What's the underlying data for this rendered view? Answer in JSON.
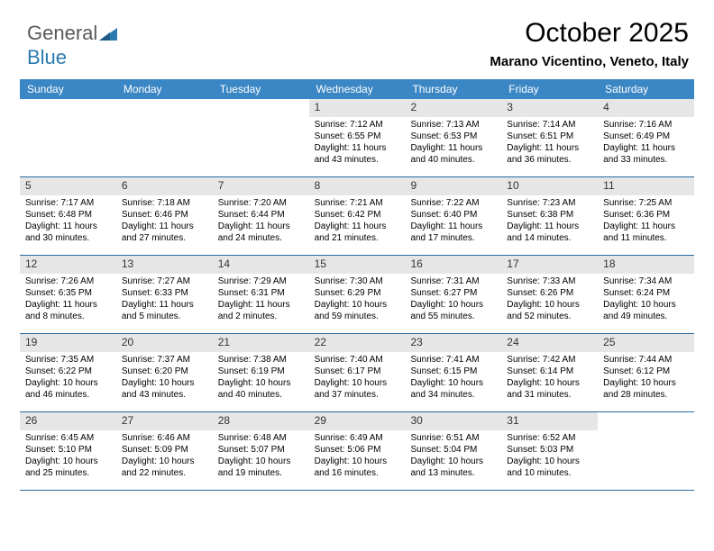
{
  "logo": {
    "text1": "General",
    "text2": "Blue"
  },
  "title": "October 2025",
  "subtitle": "Marano Vicentino, Veneto, Italy",
  "colors": {
    "header_bg": "#3b86c4",
    "header_text": "#ffffff",
    "daynum_bg": "#e6e6e6",
    "border": "#2a6aa0",
    "logo_gray": "#5a5a5a",
    "logo_blue": "#2a7ab0"
  },
  "dayHeaders": [
    "Sunday",
    "Monday",
    "Tuesday",
    "Wednesday",
    "Thursday",
    "Friday",
    "Saturday"
  ],
  "weeks": [
    [
      {
        "n": "",
        "sr": "",
        "ss": "",
        "d1": "",
        "d2": ""
      },
      {
        "n": "",
        "sr": "",
        "ss": "",
        "d1": "",
        "d2": ""
      },
      {
        "n": "",
        "sr": "",
        "ss": "",
        "d1": "",
        "d2": ""
      },
      {
        "n": "1",
        "sr": "Sunrise: 7:12 AM",
        "ss": "Sunset: 6:55 PM",
        "d1": "Daylight: 11 hours",
        "d2": "and 43 minutes."
      },
      {
        "n": "2",
        "sr": "Sunrise: 7:13 AM",
        "ss": "Sunset: 6:53 PM",
        "d1": "Daylight: 11 hours",
        "d2": "and 40 minutes."
      },
      {
        "n": "3",
        "sr": "Sunrise: 7:14 AM",
        "ss": "Sunset: 6:51 PM",
        "d1": "Daylight: 11 hours",
        "d2": "and 36 minutes."
      },
      {
        "n": "4",
        "sr": "Sunrise: 7:16 AM",
        "ss": "Sunset: 6:49 PM",
        "d1": "Daylight: 11 hours",
        "d2": "and 33 minutes."
      }
    ],
    [
      {
        "n": "5",
        "sr": "Sunrise: 7:17 AM",
        "ss": "Sunset: 6:48 PM",
        "d1": "Daylight: 11 hours",
        "d2": "and 30 minutes."
      },
      {
        "n": "6",
        "sr": "Sunrise: 7:18 AM",
        "ss": "Sunset: 6:46 PM",
        "d1": "Daylight: 11 hours",
        "d2": "and 27 minutes."
      },
      {
        "n": "7",
        "sr": "Sunrise: 7:20 AM",
        "ss": "Sunset: 6:44 PM",
        "d1": "Daylight: 11 hours",
        "d2": "and 24 minutes."
      },
      {
        "n": "8",
        "sr": "Sunrise: 7:21 AM",
        "ss": "Sunset: 6:42 PM",
        "d1": "Daylight: 11 hours",
        "d2": "and 21 minutes."
      },
      {
        "n": "9",
        "sr": "Sunrise: 7:22 AM",
        "ss": "Sunset: 6:40 PM",
        "d1": "Daylight: 11 hours",
        "d2": "and 17 minutes."
      },
      {
        "n": "10",
        "sr": "Sunrise: 7:23 AM",
        "ss": "Sunset: 6:38 PM",
        "d1": "Daylight: 11 hours",
        "d2": "and 14 minutes."
      },
      {
        "n": "11",
        "sr": "Sunrise: 7:25 AM",
        "ss": "Sunset: 6:36 PM",
        "d1": "Daylight: 11 hours",
        "d2": "and 11 minutes."
      }
    ],
    [
      {
        "n": "12",
        "sr": "Sunrise: 7:26 AM",
        "ss": "Sunset: 6:35 PM",
        "d1": "Daylight: 11 hours",
        "d2": "and 8 minutes."
      },
      {
        "n": "13",
        "sr": "Sunrise: 7:27 AM",
        "ss": "Sunset: 6:33 PM",
        "d1": "Daylight: 11 hours",
        "d2": "and 5 minutes."
      },
      {
        "n": "14",
        "sr": "Sunrise: 7:29 AM",
        "ss": "Sunset: 6:31 PM",
        "d1": "Daylight: 11 hours",
        "d2": "and 2 minutes."
      },
      {
        "n": "15",
        "sr": "Sunrise: 7:30 AM",
        "ss": "Sunset: 6:29 PM",
        "d1": "Daylight: 10 hours",
        "d2": "and 59 minutes."
      },
      {
        "n": "16",
        "sr": "Sunrise: 7:31 AM",
        "ss": "Sunset: 6:27 PM",
        "d1": "Daylight: 10 hours",
        "d2": "and 55 minutes."
      },
      {
        "n": "17",
        "sr": "Sunrise: 7:33 AM",
        "ss": "Sunset: 6:26 PM",
        "d1": "Daylight: 10 hours",
        "d2": "and 52 minutes."
      },
      {
        "n": "18",
        "sr": "Sunrise: 7:34 AM",
        "ss": "Sunset: 6:24 PM",
        "d1": "Daylight: 10 hours",
        "d2": "and 49 minutes."
      }
    ],
    [
      {
        "n": "19",
        "sr": "Sunrise: 7:35 AM",
        "ss": "Sunset: 6:22 PM",
        "d1": "Daylight: 10 hours",
        "d2": "and 46 minutes."
      },
      {
        "n": "20",
        "sr": "Sunrise: 7:37 AM",
        "ss": "Sunset: 6:20 PM",
        "d1": "Daylight: 10 hours",
        "d2": "and 43 minutes."
      },
      {
        "n": "21",
        "sr": "Sunrise: 7:38 AM",
        "ss": "Sunset: 6:19 PM",
        "d1": "Daylight: 10 hours",
        "d2": "and 40 minutes."
      },
      {
        "n": "22",
        "sr": "Sunrise: 7:40 AM",
        "ss": "Sunset: 6:17 PM",
        "d1": "Daylight: 10 hours",
        "d2": "and 37 minutes."
      },
      {
        "n": "23",
        "sr": "Sunrise: 7:41 AM",
        "ss": "Sunset: 6:15 PM",
        "d1": "Daylight: 10 hours",
        "d2": "and 34 minutes."
      },
      {
        "n": "24",
        "sr": "Sunrise: 7:42 AM",
        "ss": "Sunset: 6:14 PM",
        "d1": "Daylight: 10 hours",
        "d2": "and 31 minutes."
      },
      {
        "n": "25",
        "sr": "Sunrise: 7:44 AM",
        "ss": "Sunset: 6:12 PM",
        "d1": "Daylight: 10 hours",
        "d2": "and 28 minutes."
      }
    ],
    [
      {
        "n": "26",
        "sr": "Sunrise: 6:45 AM",
        "ss": "Sunset: 5:10 PM",
        "d1": "Daylight: 10 hours",
        "d2": "and 25 minutes."
      },
      {
        "n": "27",
        "sr": "Sunrise: 6:46 AM",
        "ss": "Sunset: 5:09 PM",
        "d1": "Daylight: 10 hours",
        "d2": "and 22 minutes."
      },
      {
        "n": "28",
        "sr": "Sunrise: 6:48 AM",
        "ss": "Sunset: 5:07 PM",
        "d1": "Daylight: 10 hours",
        "d2": "and 19 minutes."
      },
      {
        "n": "29",
        "sr": "Sunrise: 6:49 AM",
        "ss": "Sunset: 5:06 PM",
        "d1": "Daylight: 10 hours",
        "d2": "and 16 minutes."
      },
      {
        "n": "30",
        "sr": "Sunrise: 6:51 AM",
        "ss": "Sunset: 5:04 PM",
        "d1": "Daylight: 10 hours",
        "d2": "and 13 minutes."
      },
      {
        "n": "31",
        "sr": "Sunrise: 6:52 AM",
        "ss": "Sunset: 5:03 PM",
        "d1": "Daylight: 10 hours",
        "d2": "and 10 minutes."
      },
      {
        "n": "",
        "sr": "",
        "ss": "",
        "d1": "",
        "d2": ""
      }
    ]
  ]
}
